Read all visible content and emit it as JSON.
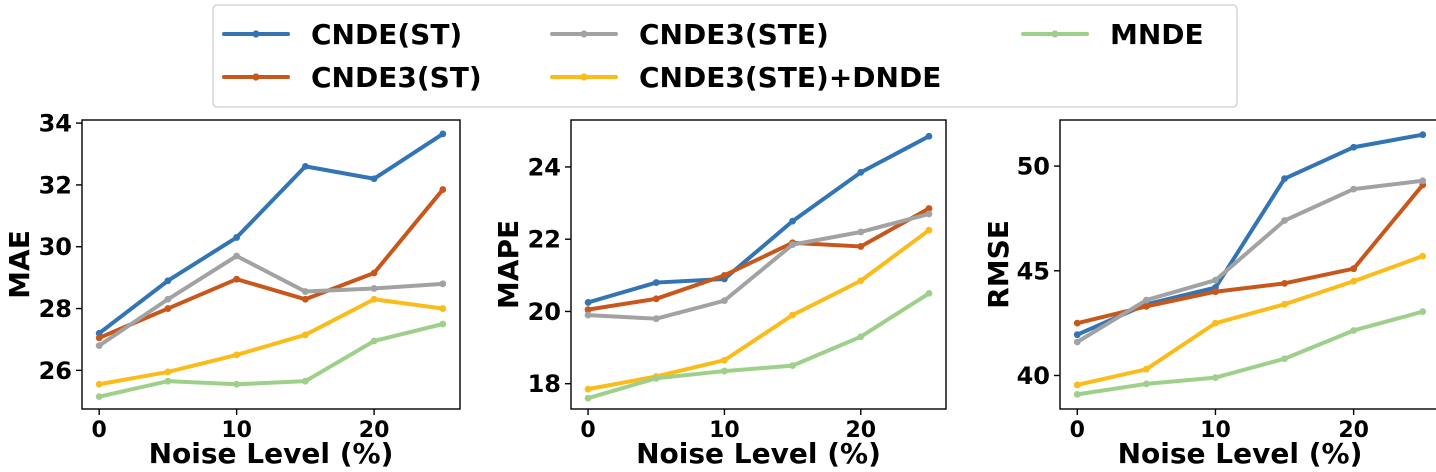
{
  "colors": {
    "CNDE(ST)": "#3274b4",
    "CNDE3(ST)": "#c8571c",
    "CNDE3(STE)": "#a2a2a2",
    "CNDE3(STE)+DNDE": "#fbbc1a",
    "MNDE": "#9fd08b"
  },
  "legend": [
    "CNDE(ST)",
    "CNDE3(STE)",
    "MNDE",
    "CNDE3(ST)",
    "CNDE3(STE)+DNDE"
  ],
  "chart_data": [
    {
      "type": "line",
      "xlabel": "Noise Level (%)",
      "ylabel": "MAE",
      "x": [
        0,
        5,
        10,
        15,
        20,
        25
      ],
      "xticks": [
        0,
        10,
        20
      ],
      "yticks": [
        26,
        28,
        30,
        32,
        34
      ],
      "xlim": [
        -1.25,
        26.25
      ],
      "ylim": [
        24.75,
        34.1
      ],
      "series": [
        {
          "name": "CNDE(ST)",
          "values": [
            27.2,
            28.9,
            30.3,
            32.6,
            32.2,
            33.65
          ]
        },
        {
          "name": "CNDE3(ST)",
          "values": [
            27.05,
            28.0,
            28.95,
            28.3,
            29.15,
            31.85
          ]
        },
        {
          "name": "CNDE3(STE)",
          "values": [
            26.8,
            28.3,
            29.7,
            28.55,
            28.65,
            28.8
          ]
        },
        {
          "name": "CNDE3(STE)+DNDE",
          "values": [
            25.55,
            25.95,
            26.5,
            27.15,
            28.3,
            28.0
          ]
        },
        {
          "name": "MNDE",
          "values": [
            25.15,
            25.65,
            25.55,
            25.65,
            26.95,
            27.5
          ]
        }
      ]
    },
    {
      "type": "line",
      "xlabel": "Noise Level (%)",
      "ylabel": "MAPE",
      "x": [
        0,
        5,
        10,
        15,
        20,
        25
      ],
      "xticks": [
        0,
        10,
        20
      ],
      "yticks": [
        18,
        20,
        22,
        24
      ],
      "xlim": [
        -1.25,
        26.25
      ],
      "ylim": [
        17.3,
        25.3
      ],
      "series": [
        {
          "name": "CNDE(ST)",
          "values": [
            20.25,
            20.8,
            20.9,
            22.5,
            23.85,
            24.85
          ]
        },
        {
          "name": "CNDE3(ST)",
          "values": [
            20.05,
            20.35,
            21.0,
            21.9,
            21.8,
            22.85
          ]
        },
        {
          "name": "CNDE3(STE)",
          "values": [
            19.9,
            19.8,
            20.3,
            21.85,
            22.2,
            22.7
          ]
        },
        {
          "name": "CNDE3(STE)+DNDE",
          "values": [
            17.85,
            18.2,
            18.65,
            19.9,
            20.85,
            22.25
          ]
        },
        {
          "name": "MNDE",
          "values": [
            17.6,
            18.15,
            18.35,
            18.5,
            19.3,
            20.5
          ]
        }
      ]
    },
    {
      "type": "line",
      "xlabel": "Noise Level (%)",
      "ylabel": "RMSE",
      "x": [
        0,
        5,
        10,
        15,
        20,
        25
      ],
      "xticks": [
        0,
        10,
        20
      ],
      "yticks": [
        40,
        45,
        50
      ],
      "xlim": [
        -1.25,
        26.25
      ],
      "ylim": [
        38.4,
        52.2
      ],
      "series": [
        {
          "name": "CNDE(ST)",
          "values": [
            41.95,
            43.4,
            44.2,
            49.4,
            50.9,
            51.5
          ]
        },
        {
          "name": "CNDE3(ST)",
          "values": [
            42.5,
            43.3,
            44.0,
            44.4,
            45.1,
            49.1
          ]
        },
        {
          "name": "CNDE3(STE)",
          "values": [
            41.6,
            43.6,
            44.55,
            47.4,
            48.9,
            49.3
          ]
        },
        {
          "name": "CNDE3(STE)+DNDE",
          "values": [
            39.55,
            40.3,
            42.5,
            43.4,
            44.5,
            45.7
          ]
        },
        {
          "name": "MNDE",
          "values": [
            39.1,
            39.6,
            39.9,
            40.8,
            42.15,
            43.05
          ]
        }
      ]
    }
  ]
}
